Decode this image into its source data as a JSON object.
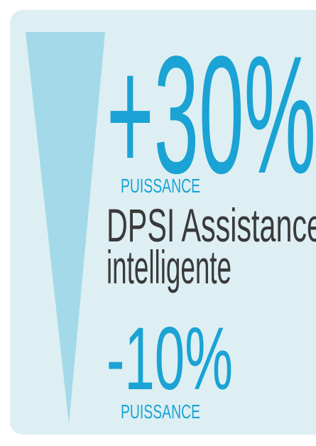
{
  "top": {
    "figure": "+30%",
    "caption": "PUISSANCE"
  },
  "middle": {
    "lines": [
      "DPSI Assistance",
      "intelligente"
    ]
  },
  "bottom": {
    "figure": "-10%",
    "caption": "PUISSANCE"
  }
}
